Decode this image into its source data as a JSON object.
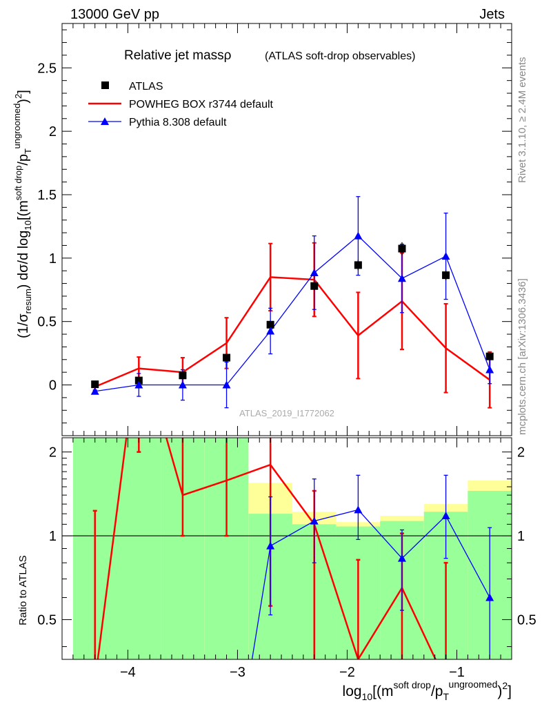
{
  "header": {
    "left": "13000 GeV pp",
    "right": "Jets"
  },
  "side_labels": {
    "rivet": "Rivet 3.1.10, ≥ 2.4M events",
    "mcplots": "mcplots.cern.ch [arXiv:1306.3436]"
  },
  "chart_data": [
    {
      "type": "scatter",
      "panel": "main",
      "title": "Relative jet massρ",
      "subtitle": "(ATLAS soft-drop observables)",
      "watermark": "ATLAS_2019_I1772062",
      "ylabel": "(1/σresum) dσ/d log10[(msoft drop/pTungroomed)2]",
      "xlim": [
        -4.6,
        -0.5
      ],
      "ylim": [
        -0.4,
        2.85
      ],
      "yticks": [
        0,
        0.5,
        1,
        1.5,
        2,
        2.5
      ],
      "ytick_labels": [
        "0",
        "0.5",
        "1",
        "1.5",
        "2",
        "2.5"
      ],
      "grid": false,
      "legend_position": "top-left",
      "x": [
        -4.3,
        -3.9,
        -3.5,
        -3.1,
        -2.7,
        -2.3,
        -1.9,
        -1.5,
        -1.1,
        -0.7
      ],
      "series": [
        {
          "name": "ATLAS",
          "color": "#000000",
          "marker": "square",
          "values": [
            0.005,
            0.035,
            0.075,
            0.215,
            0.475,
            0.78,
            0.945,
            1.075,
            0.865,
            0.225
          ],
          "err": [
            0.005,
            0.01,
            0.015,
            0.015,
            0.02,
            0.03,
            0.04,
            0.05,
            0.04,
            0.03
          ]
        },
        {
          "name": "POWHEG BOX r3744 default",
          "color": "#ff0000",
          "marker": "line",
          "values": [
            -0.015,
            0.13,
            0.1,
            0.33,
            0.85,
            0.83,
            0.39,
            0.66,
            0.29,
            0.04
          ],
          "err": [
            0.03,
            0.09,
            0.115,
            0.2,
            0.265,
            0.29,
            0.34,
            0.38,
            0.35,
            0.22
          ]
        },
        {
          "name": "Pythia 8.308 default",
          "color": "#0000ff",
          "marker": "triangle",
          "values": [
            -0.05,
            0.0,
            0.0,
            0.0,
            0.425,
            0.885,
            1.175,
            0.84,
            1.015,
            0.12
          ],
          "err": [
            0.01,
            0.09,
            0.12,
            0.18,
            0.18,
            0.29,
            0.31,
            0.27,
            0.34,
            0.11
          ]
        }
      ]
    },
    {
      "type": "line",
      "panel": "ratio",
      "ylabel": "Ratio to ATLAS",
      "xlabel": "log10[(msoft drop/pTungroomed)2]",
      "xlim": [
        -4.6,
        -0.5
      ],
      "ylim": [
        0.36,
        2.25
      ],
      "y_scale": "log",
      "xticks": [
        -4,
        -3,
        -2,
        -1
      ],
      "xtick_labels": [
        "−4",
        "−3",
        "−2",
        "−1"
      ],
      "yticks": [
        0.5,
        1,
        2
      ],
      "ytick_labels": [
        "0.5",
        "1",
        "2"
      ],
      "reference_line": 1,
      "bin_edges": [
        -4.5,
        -4.1,
        -3.7,
        -3.3,
        -2.9,
        -2.5,
        -2.1,
        -1.7,
        -1.3,
        -0.9,
        -0.5
      ],
      "band_yellow": [
        [
          0.36,
          2.25
        ],
        [
          0.36,
          2.25
        ],
        [
          0.36,
          2.25
        ],
        [
          0.36,
          2.25
        ],
        [
          0.36,
          1.55
        ],
        [
          0.36,
          1.22
        ],
        [
          0.36,
          1.12
        ],
        [
          0.36,
          1.18
        ],
        [
          0.36,
          1.3
        ],
        [
          0.36,
          1.58
        ]
      ],
      "band_green": [
        [
          0.36,
          2.25
        ],
        [
          0.36,
          2.25
        ],
        [
          0.36,
          2.25
        ],
        [
          0.36,
          2.25
        ],
        [
          0.36,
          1.2
        ],
        [
          0.36,
          1.1
        ],
        [
          0.36,
          1.08
        ],
        [
          0.36,
          1.13
        ],
        [
          0.36,
          1.22
        ],
        [
          0.36,
          1.45
        ]
      ],
      "series": [
        {
          "name": "POWHEG BOX r3744 default",
          "color": "#ff0000",
          "x": [
            -4.3,
            -3.9,
            -3.5,
            -3.1,
            -2.7,
            -2.3,
            -1.9,
            -1.5,
            -1.1
          ],
          "values": [
            0.3,
            5.0,
            1.4,
            1.58,
            1.8,
            1.1,
            0.36,
            0.65,
            0.3
          ],
          "err_low": [
            0.3,
            2.0,
            1.0,
            1.0,
            0.56,
            0.3,
            0.3,
            0.3,
            0.3
          ],
          "err_high": [
            1.23,
            5.0,
            2.8,
            2.35,
            2.35,
            1.45,
            0.82,
            1.02,
            0.8
          ]
        },
        {
          "name": "Pythia 8.308 default",
          "color": "#0000ff",
          "x": [
            -2.9,
            -2.7,
            -2.3,
            -1.9,
            -1.5,
            -1.1,
            -0.7
          ],
          "values": [
            0.3,
            0.92,
            1.13,
            1.24,
            0.83,
            1.18,
            0.6
          ],
          "err_low": [
            0.3,
            0.52,
            0.8,
            0.97,
            0.54,
            0.83,
            0.3
          ],
          "err_high": [
            0.3,
            1.38,
            1.6,
            1.65,
            1.05,
            1.65,
            1.07
          ]
        }
      ]
    }
  ]
}
